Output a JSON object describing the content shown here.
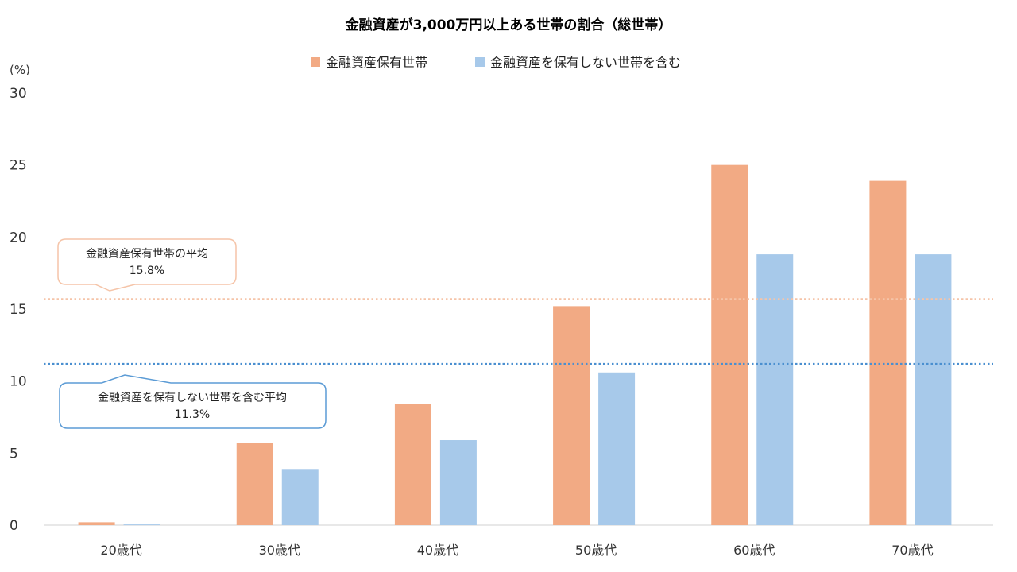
{
  "chart_data": {
    "type": "bar",
    "title": "金融資産が3,000万円以上ある世帯の割合（総世帯）",
    "ylabel": "(%)",
    "ylim": [
      0,
      30
    ],
    "yticks": [
      0,
      5,
      10,
      15,
      20,
      25,
      30
    ],
    "grid": false,
    "legend_placement": "top-center",
    "categories": [
      "20歳代",
      "30歳代",
      "40歳代",
      "50歳代",
      "60歳代",
      "70歳代"
    ],
    "series": [
      {
        "name": "金融資産保有世帯",
        "color": "#f2aa84",
        "values": [
          0.2,
          5.7,
          8.4,
          15.2,
          25.0,
          23.9
        ]
      },
      {
        "name": "金融資産を保有しない世帯を含む",
        "color": "#a7c9ea",
        "values": [
          0.05,
          3.9,
          5.9,
          10.6,
          18.8,
          18.8
        ]
      }
    ],
    "reference_lines": [
      {
        "label": "金融資産保有世帯の平均",
        "value_label": "15.8%",
        "value": 15.8,
        "color": "#f5c4a8",
        "callout_border": "#f5c4a8"
      },
      {
        "label": "金融資産を保有しない世帯を含む平均",
        "value_label": "11.3%",
        "value": 11.3,
        "color": "#4a8fd0",
        "callout_border": "#5b9bd5"
      }
    ]
  }
}
